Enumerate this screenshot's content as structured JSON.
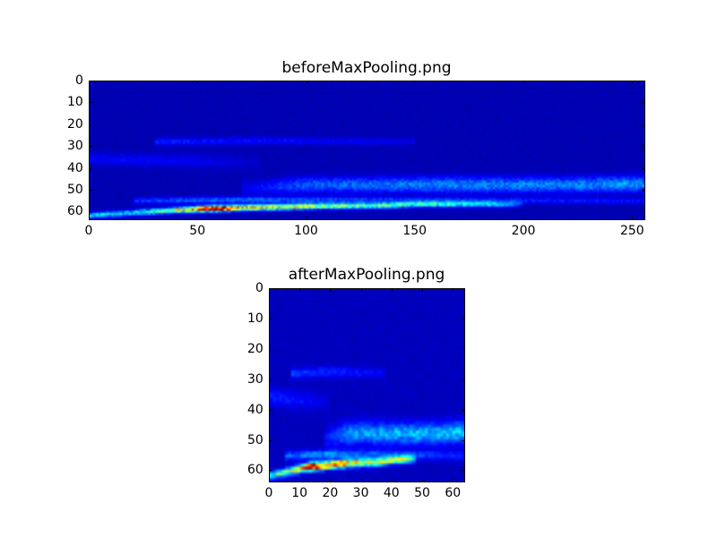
{
  "chart_data": [
    {
      "type": "heatmap",
      "title": "beforeMaxPooling.png",
      "colormap": "jet",
      "grid": false,
      "columns": 256,
      "rows": 64,
      "xlim": [
        0,
        256
      ],
      "ylim": [
        64,
        0
      ],
      "xticks": [
        "0",
        "50",
        "100",
        "150",
        "200",
        "250"
      ],
      "yticks": [
        "0",
        "10",
        "20",
        "30",
        "40",
        "50",
        "60"
      ],
      "background_value": 0.04,
      "ridges": [
        {
          "points": [
            [
              0,
              62.2,
              0.3
            ],
            [
              20,
              61,
              0.3
            ],
            [
              45,
              59.5,
              0.6
            ],
            [
              58,
              59,
              1.0
            ],
            [
              70,
              58.7,
              0.65
            ],
            [
              100,
              58,
              0.55
            ],
            [
              120,
              57.8,
              0.45
            ],
            [
              140,
              57.5,
              0.42
            ],
            [
              150,
              57,
              0.35
            ],
            [
              165,
              57,
              0.38
            ],
            [
              175,
              57,
              0.28
            ],
            [
              188,
              57,
              0.3
            ],
            [
              200,
              57,
              0.08
            ]
          ],
          "width": 0.9
        },
        {
          "points": [
            [
              20,
              55.5,
              0.12
            ],
            [
              60,
              55,
              0.18
            ],
            [
              100,
              55,
              0.15
            ],
            [
              140,
              55,
              0.12
            ],
            [
              256,
              55.5,
              0.08
            ]
          ],
          "width": 1.0
        },
        {
          "points": [
            [
              70,
              50,
              0.05
            ],
            [
              100,
              48,
              0.16
            ],
            [
              160,
              48,
              0.2
            ],
            [
              220,
              48,
              0.2
            ],
            [
              256,
              47.5,
              0.22
            ]
          ],
          "width": 2.5
        },
        {
          "points": [
            [
              30,
              28,
              0.1
            ],
            [
              80,
              27.5,
              0.08
            ],
            [
              150,
              28,
              0.05
            ]
          ],
          "width": 1.2
        },
        {
          "points": [
            [
              0,
              36,
              0.07
            ],
            [
              50,
              37,
              0.06
            ],
            [
              80,
              38,
              0.02
            ]
          ],
          "width": 2.0
        }
      ]
    },
    {
      "type": "heatmap",
      "title": "afterMaxPooling.png",
      "colormap": "jet",
      "grid": false,
      "columns": 64,
      "rows": 64,
      "xlim": [
        0,
        64
      ],
      "ylim": [
        64,
        0
      ],
      "xticks": [
        "0",
        "10",
        "20",
        "30",
        "40",
        "50",
        "60"
      ],
      "yticks": [
        "0",
        "10",
        "20",
        "30",
        "40",
        "50",
        "60"
      ],
      "background_value": 0.05,
      "ridges": [
        {
          "points": [
            [
              0,
              62.2,
              0.35
            ],
            [
              5,
              61,
              0.4
            ],
            [
              11,
              59.5,
              0.7
            ],
            [
              14,
              59,
              1.0
            ],
            [
              18,
              58.7,
              0.75
            ],
            [
              25,
              58,
              0.65
            ],
            [
              30,
              57.8,
              0.55
            ],
            [
              35,
              57.5,
              0.5
            ],
            [
              40,
              57,
              0.42
            ],
            [
              46,
              56.5,
              0.45
            ],
            [
              48,
              56.5,
              0.1
            ]
          ],
          "width": 0.9
        },
        {
          "points": [
            [
              5,
              55.5,
              0.15
            ],
            [
              15,
              55,
              0.22
            ],
            [
              25,
              55,
              0.18
            ],
            [
              35,
              55,
              0.15
            ],
            [
              64,
              55.5,
              0.1
            ]
          ],
          "width": 1.0
        },
        {
          "points": [
            [
              18,
              50,
              0.06
            ],
            [
              25,
              48,
              0.2
            ],
            [
              40,
              48,
              0.24
            ],
            [
              55,
              48,
              0.24
            ],
            [
              64,
              47.5,
              0.26
            ]
          ],
          "width": 2.5
        },
        {
          "points": [
            [
              7,
              28,
              0.12
            ],
            [
              20,
              27.5,
              0.1
            ],
            [
              38,
              28,
              0.06
            ]
          ],
          "width": 1.2
        },
        {
          "points": [
            [
              0,
              36,
              0.09
            ],
            [
              12,
              37,
              0.07
            ],
            [
              20,
              38,
              0.02
            ]
          ],
          "width": 2.0
        }
      ]
    }
  ]
}
